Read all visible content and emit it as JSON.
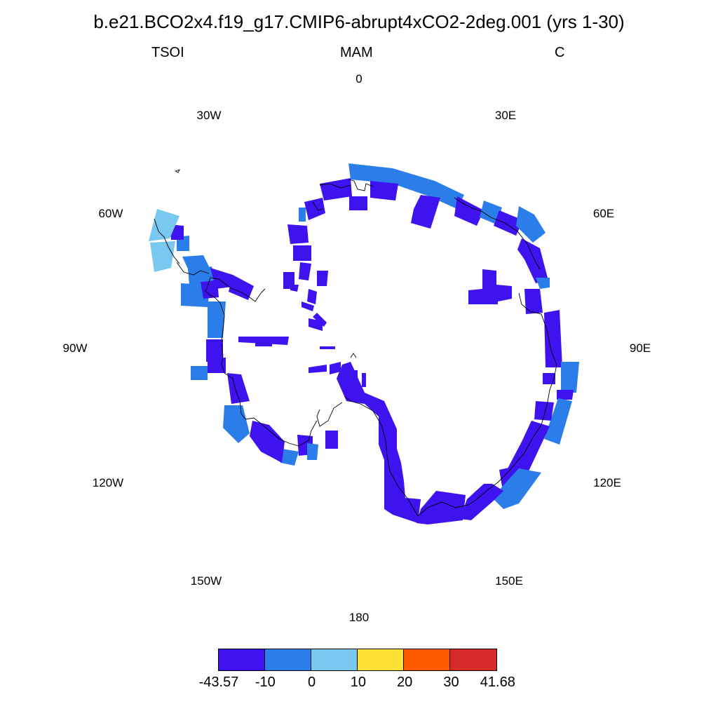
{
  "title": "b.e21.BCO2x4.f19_g17.CMIP6-abrupt4xCO2-2deg.001 (yrs 1-30)",
  "variable": "TSOI",
  "season": "MAM",
  "units": "C",
  "longitude_labels": [
    "0",
    "30E",
    "60E",
    "90E",
    "120E",
    "150E",
    "180",
    "150W",
    "120W",
    "90W",
    "60W",
    "30W"
  ],
  "colorbar": {
    "colors": [
      "#3f12f0",
      "#2b7de9",
      "#79c8ef",
      "#ffe135",
      "#ff5a00",
      "#d62a2a"
    ],
    "labels": [
      "-43.57",
      "-10",
      "0",
      "10",
      "20",
      "30",
      "41.68"
    ]
  },
  "map": {
    "projection": "south polar stereographic",
    "colors": {
      "very_cold": "#3f12f0",
      "cold": "#2b7de9",
      "cool": "#79c8ef",
      "coast": "#000000"
    }
  }
}
